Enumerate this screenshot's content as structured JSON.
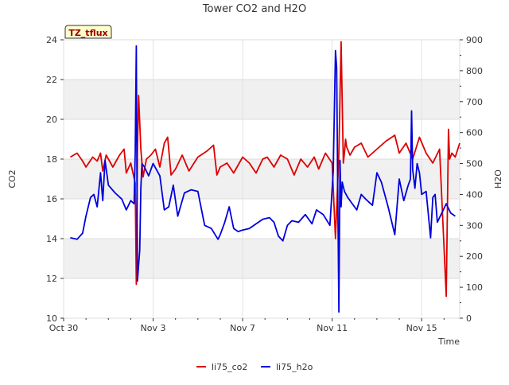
{
  "chart_data": {
    "type": "line",
    "title": "Tower CO2 and H2O",
    "xlabel": "Time",
    "ylabel_left": "CO2",
    "ylabel_right": "H2O",
    "badge": "TZ_tflux",
    "x_tick_labels": [
      "Oct 30",
      "Nov 3",
      "Nov 7",
      "Nov 11",
      "Nov 15"
    ],
    "x_tick_days": [
      0,
      4,
      8,
      12,
      16
    ],
    "xlim_days": [
      0,
      17.7
    ],
    "ylim_left": [
      10,
      24
    ],
    "yticks_left": [
      10,
      12,
      14,
      16,
      18,
      20,
      22,
      24
    ],
    "ylim_right": [
      0,
      900
    ],
    "yticks_right": [
      0,
      100,
      200,
      300,
      400,
      500,
      600,
      700,
      800,
      900
    ],
    "colors": {
      "li75_co2": "#dd0000",
      "li75_h2o": "#0000dd"
    },
    "series": [
      {
        "name": "li75_co2",
        "axis": "left",
        "x": [
          0.3,
          0.6,
          0.85,
          1.0,
          1.3,
          1.5,
          1.65,
          1.75,
          1.9,
          2.2,
          2.5,
          2.7,
          2.8,
          3.0,
          3.2,
          3.25,
          3.3,
          3.35,
          3.45,
          3.55,
          3.7,
          3.9,
          4.1,
          4.3,
          4.5,
          4.65,
          4.8,
          5.0,
          5.3,
          5.6,
          6.0,
          6.4,
          6.7,
          6.85,
          7.0,
          7.3,
          7.6,
          8.0,
          8.3,
          8.6,
          8.9,
          9.1,
          9.4,
          9.7,
          10.0,
          10.3,
          10.6,
          10.9,
          11.2,
          11.4,
          11.7,
          12.0,
          12.15,
          12.3,
          12.4,
          12.5,
          12.55,
          12.6,
          12.65,
          12.8,
          13.0,
          13.3,
          13.6,
          14.0,
          14.4,
          14.8,
          15.0,
          15.3,
          15.6,
          15.9,
          16.2,
          16.5,
          16.8,
          17.1,
          17.2,
          17.25,
          17.35,
          17.5,
          17.7
        ],
        "y": [
          18.1,
          18.3,
          17.9,
          17.6,
          18.1,
          17.9,
          18.3,
          17.4,
          18.2,
          17.6,
          18.2,
          18.5,
          17.3,
          17.8,
          16.8,
          11.7,
          18.3,
          21.2,
          18.5,
          17.1,
          18.0,
          18.2,
          18.5,
          17.6,
          18.8,
          19.1,
          17.2,
          17.5,
          18.2,
          17.4,
          18.1,
          18.4,
          18.7,
          17.2,
          17.6,
          17.8,
          17.3,
          18.1,
          17.8,
          17.3,
          18.0,
          18.1,
          17.6,
          18.2,
          18.0,
          17.2,
          18.0,
          17.6,
          18.1,
          17.5,
          18.3,
          17.8,
          14.0,
          18.3,
          23.9,
          17.8,
          18.3,
          19.0,
          18.6,
          18.2,
          18.6,
          18.8,
          18.1,
          18.5,
          18.9,
          19.2,
          18.3,
          18.8,
          18.0,
          19.1,
          18.3,
          17.8,
          18.5,
          11.1,
          19.5,
          18.0,
          18.3,
          18.1,
          18.8
        ]
      },
      {
        "name": "li75_h2o",
        "axis": "right",
        "x": [
          0.3,
          0.6,
          0.85,
          1.0,
          1.2,
          1.35,
          1.5,
          1.65,
          1.75,
          1.85,
          2.0,
          2.3,
          2.6,
          2.8,
          3.0,
          3.15,
          3.2,
          3.25,
          3.3,
          3.4,
          3.45,
          3.5,
          3.6,
          3.8,
          4.0,
          4.3,
          4.5,
          4.7,
          4.9,
          5.1,
          5.4,
          5.7,
          6.0,
          6.3,
          6.6,
          6.9,
          7.0,
          7.2,
          7.4,
          7.6,
          7.8,
          8.0,
          8.3,
          8.6,
          8.9,
          9.2,
          9.4,
          9.6,
          9.8,
          10.0,
          10.2,
          10.5,
          10.8,
          11.1,
          11.3,
          11.6,
          11.9,
          12.05,
          12.15,
          12.2,
          12.25,
          12.3,
          12.35,
          12.4,
          12.45,
          12.55,
          12.7,
          12.9,
          13.1,
          13.3,
          13.5,
          13.8,
          14.0,
          14.2,
          14.5,
          14.8,
          15.0,
          15.2,
          15.4,
          15.5,
          15.55,
          15.6,
          15.7,
          15.8,
          15.9,
          16.0,
          16.2,
          16.4,
          16.5,
          16.6,
          16.7,
          16.9,
          17.1,
          17.3,
          17.5
        ],
        "y": [
          260,
          255,
          275,
          330,
          390,
          400,
          360,
          470,
          380,
          510,
          430,
          405,
          385,
          350,
          380,
          370,
          530,
          880,
          120,
          220,
          420,
          500,
          490,
          460,
          500,
          460,
          350,
          360,
          430,
          330,
          405,
          415,
          410,
          300,
          290,
          255,
          270,
          310,
          360,
          290,
          280,
          285,
          290,
          305,
          320,
          325,
          310,
          265,
          250,
          300,
          315,
          310,
          335,
          305,
          350,
          335,
          300,
          475,
          865,
          810,
          400,
          20,
          510,
          360,
          440,
          410,
          390,
          370,
          350,
          400,
          385,
          365,
          470,
          440,
          360,
          270,
          450,
          380,
          430,
          450,
          670,
          480,
          420,
          500,
          470,
          400,
          410,
          260,
          390,
          400,
          310,
          340,
          370,
          340,
          330
        ]
      }
    ],
    "legend": [
      {
        "label": "li75_co2",
        "color": "#dd0000"
      },
      {
        "label": "li75_h2o",
        "color": "#0000dd"
      }
    ]
  }
}
